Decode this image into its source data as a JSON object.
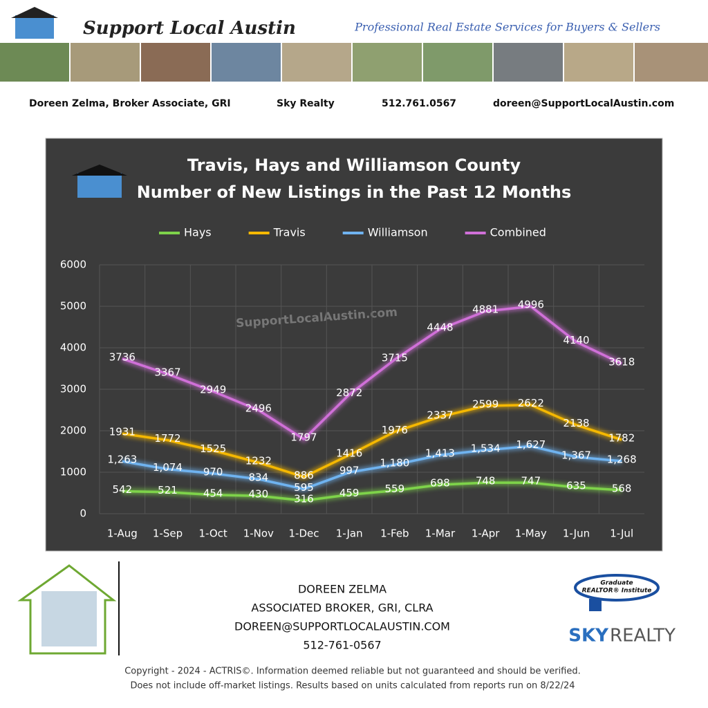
{
  "header": {
    "brand": "Support Local Austin",
    "tagline": "Professional Real Estate Services for Buyers & Sellers",
    "contact": [
      "Doreen Zelma,  Broker Associate, GRI",
      "Sky Realty",
      "512.761.0567",
      "doreen@SupportLocalAustin.com"
    ]
  },
  "chart_data": {
    "type": "line",
    "title": "Travis, Hays and Williamson County",
    "subtitle": "Number of New Listings in the Past 12 Months",
    "watermark": "SupportLocalAustin.com",
    "categories": [
      "1-Aug",
      "1-Sep",
      "1-Oct",
      "1-Nov",
      "1-Dec",
      "1-Jan",
      "1-Feb",
      "1-Mar",
      "1-Apr",
      "1-May",
      "1-Jun",
      "1-Jul"
    ],
    "ylim": [
      0,
      6000
    ],
    "yticks": [
      0,
      1000,
      2000,
      3000,
      4000,
      5000,
      6000
    ],
    "grid": true,
    "legend": "top",
    "series": [
      {
        "name": "Hays",
        "color": "#7ed34a",
        "values": [
          542,
          521,
          454,
          430,
          316,
          459,
          559,
          698,
          748,
          747,
          635,
          568
        ]
      },
      {
        "name": "Travis",
        "color": "#f5b800",
        "values": [
          1931,
          1772,
          1525,
          1232,
          886,
          1416,
          1976,
          2337,
          2599,
          2622,
          2138,
          1782
        ]
      },
      {
        "name": "Williamson",
        "color": "#6fb3f0",
        "values": [
          1263,
          1074,
          970,
          834,
          595,
          997,
          1180,
          1413,
          1534,
          1627,
          1367,
          1268
        ],
        "value_labels": [
          "1,263",
          "1,074",
          "970",
          "834",
          "595",
          "997",
          "1,180",
          "1,413",
          "1,534",
          "1,627",
          "1,367",
          "1,268"
        ]
      },
      {
        "name": "Combined",
        "color": "#d070d8",
        "values": [
          3736,
          3367,
          2949,
          2496,
          1797,
          2872,
          3715,
          4448,
          4881,
          4996,
          4140,
          3618
        ]
      }
    ]
  },
  "footer": {
    "contact": [
      "DOREEN ZELMA",
      "ASSOCIATED BROKER, GRI, CLRA",
      "DOREEN@SUPPORTLOCALAUSTIN.COM",
      "512-761-0567"
    ],
    "logo": [
      "Graduate",
      "REALTOR® Institute",
      "SKY",
      "REALTY"
    ],
    "copyright": [
      "Copyright - 2024 - ACTRIS©. Information deemed reliable but not guaranteed and should be verified.",
      "Does not include off-market listings. Results based on units calculated from reports run on 8/22/24"
    ]
  }
}
